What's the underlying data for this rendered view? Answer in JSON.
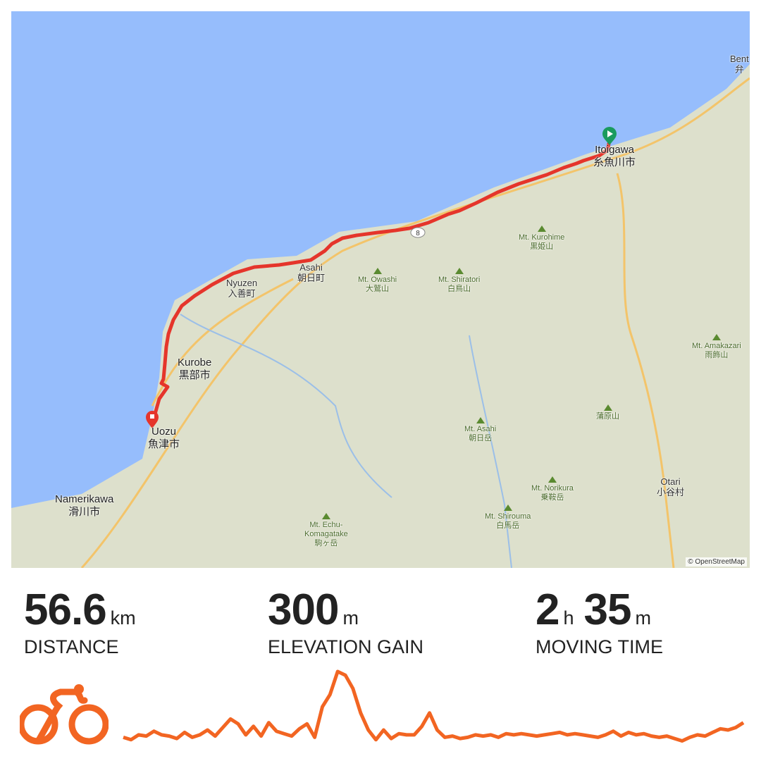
{
  "map": {
    "attribution": "© OpenStreetMap",
    "colors": {
      "sea": "#96bdfc",
      "land": "#dde0cc",
      "route": "#e5352b",
      "start": "#1a9b5e",
      "end": "#e5352b"
    },
    "labels": [
      {
        "text": "Bent\n弁",
        "kind": "town"
      },
      {
        "text": "Itoigawa\n糸魚川市",
        "kind": "city"
      },
      {
        "text": "Mt. Kurohime\n黒姫山",
        "kind": "mountain"
      },
      {
        "text": "Mt. Owashi\n大鷲山",
        "kind": "mountain"
      },
      {
        "text": "Mt. Shiratori\n白鳥山",
        "kind": "mountain"
      },
      {
        "text": "Asahi\n朝日町",
        "kind": "town"
      },
      {
        "text": "Nyuzen\n入善町",
        "kind": "town"
      },
      {
        "text": "Kurobe\n黒部市",
        "kind": "city"
      },
      {
        "text": "Uozu\n魚津市",
        "kind": "city"
      },
      {
        "text": "Namerikawa\n滑川市",
        "kind": "city"
      },
      {
        "text": "Mt. Amakazari\n雨飾山",
        "kind": "mountain"
      },
      {
        "text": "蒲原山",
        "kind": "mountain"
      },
      {
        "text": "Mt. Asahi\n朝日岳",
        "kind": "mountain"
      },
      {
        "text": "Mt. Norikura\n乗鞍岳",
        "kind": "mountain"
      },
      {
        "text": "Mt. Shirouma\n白馬岳",
        "kind": "mountain"
      },
      {
        "text": "Otari\n小谷村",
        "kind": "town"
      },
      {
        "text": "Mt. Echu-\nKomagatake\n駒ヶ岳",
        "kind": "mountain"
      },
      {
        "text": "8",
        "kind": "road-shield"
      }
    ]
  },
  "stats": [
    {
      "value": "56.6",
      "unit": "km",
      "label": "DISTANCE"
    },
    {
      "value": "300",
      "unit": "m",
      "label": "ELEVATION GAIN"
    },
    {
      "value": "2",
      "unit": "h",
      "value2": "35",
      "unit2": "m",
      "label": "MOVING TIME"
    }
  ],
  "activity_icon": "cycling-icon",
  "accent": "#f26522",
  "elevation_profile": [
    10,
    6,
    14,
    12,
    20,
    14,
    12,
    8,
    18,
    10,
    14,
    22,
    12,
    26,
    40,
    32,
    14,
    28,
    12,
    34,
    20,
    16,
    12,
    24,
    32,
    10,
    60,
    80,
    118,
    112,
    90,
    50,
    22,
    6,
    22,
    8,
    16,
    14,
    14,
    28,
    50,
    22,
    10,
    12,
    8,
    10,
    14,
    12,
    14,
    10,
    16,
    14,
    16,
    14,
    12,
    14,
    16,
    18,
    14,
    16,
    14,
    12,
    10,
    14,
    20,
    12,
    18,
    14,
    16,
    12,
    10,
    12,
    8,
    4,
    10,
    14,
    12,
    18,
    24,
    22,
    26,
    34
  ]
}
